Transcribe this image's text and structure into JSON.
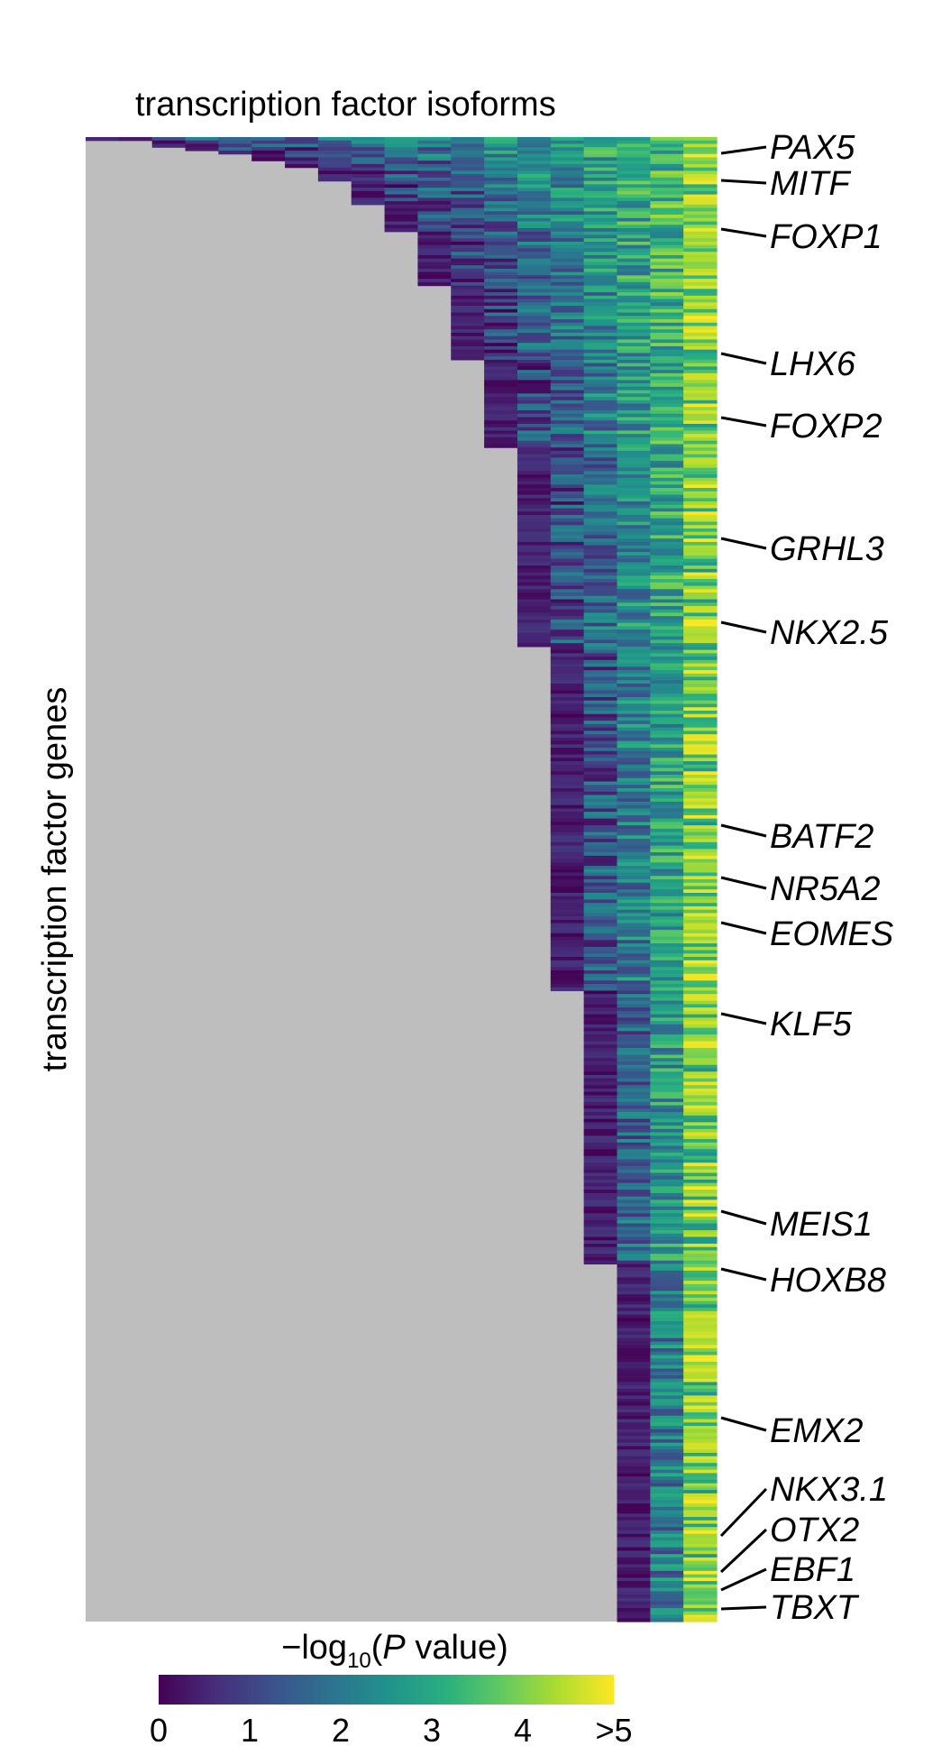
{
  "chart_data": {
    "type": "heatmap",
    "title": "transcription factor isoforms",
    "xlabel": "transcription factor isoforms",
    "ylabel": "transcription factor genes",
    "colorbar": {
      "label_prefix": "−log",
      "label_subscript": "10",
      "label_paren_open": "(",
      "label_italic": "P",
      "label_suffix": " value)",
      "ticks": [
        "0",
        "1",
        "2",
        "3",
        "4",
        ">5"
      ],
      "range": [
        0,
        5
      ],
      "colormap": "viridis"
    },
    "colors": {
      "missing": "#bebebe",
      "viridis_low": "#440154",
      "viridis_high": "#fde725"
    },
    "isoform_columns": 19,
    "gene_rows": 440,
    "isoform_count_boundaries": [
      {
        "isoforms": 19,
        "first_row": 0
      },
      {
        "isoforms": 17,
        "first_row": 1
      },
      {
        "isoforms": 16,
        "first_row": 3
      },
      {
        "isoforms": 15,
        "first_row": 4
      },
      {
        "isoforms": 14,
        "first_row": 5
      },
      {
        "isoforms": 13,
        "first_row": 7
      },
      {
        "isoforms": 12,
        "first_row": 9
      },
      {
        "isoforms": 11,
        "first_row": 13
      },
      {
        "isoforms": 10,
        "first_row": 20
      },
      {
        "isoforms": 9,
        "first_row": 28
      },
      {
        "isoforms": 8,
        "first_row": 44
      },
      {
        "isoforms": 7,
        "first_row": 66
      },
      {
        "isoforms": 6,
        "first_row": 92
      },
      {
        "isoforms": 5,
        "first_row": 151
      },
      {
        "isoforms": 4,
        "first_row": 253
      },
      {
        "isoforms": 3,
        "first_row": 334
      }
    ],
    "labeled_genes": [
      "PAX5",
      "MITF",
      "FOXP1",
      "LHX6",
      "FOXP2",
      "GRHL3",
      "NKX2.5",
      "BATF2",
      "NR5A2",
      "EOMES",
      "KLF5",
      "MEIS1",
      "HOXB8",
      "EMX2",
      "NKX3.1",
      "OTX2",
      "EBF1",
      "TBXT"
    ]
  }
}
